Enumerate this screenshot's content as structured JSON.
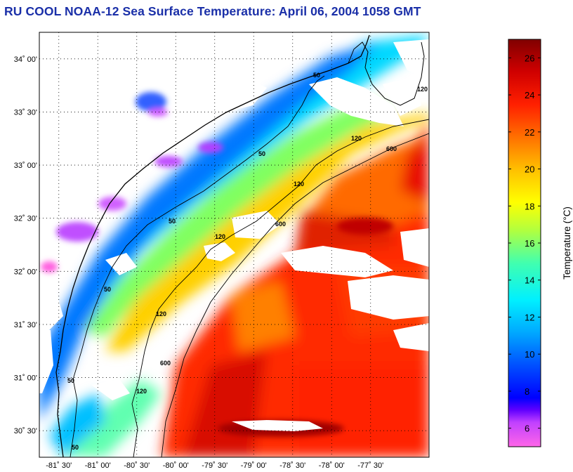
{
  "title": "RU COOL  NOAA-12  Sea Surface Temperature:  April 06, 2004 1058 GMT",
  "map": {
    "lon_range": [
      -81.75,
      -76.75
    ],
    "lat_range": [
      30.25,
      34.25
    ],
    "lat_ticks": [
      {
        "value": 34.0,
        "label": "34˚ 00'"
      },
      {
        "value": 33.5,
        "label": "33˚ 30'"
      },
      {
        "value": 33.0,
        "label": "33˚ 00'"
      },
      {
        "value": 32.5,
        "label": "32˚ 30'"
      },
      {
        "value": 32.0,
        "label": "32˚ 00'"
      },
      {
        "value": 31.5,
        "label": "31˚ 30'"
      },
      {
        "value": 31.0,
        "label": "31˚ 00'"
      },
      {
        "value": 30.5,
        "label": "30˚ 30'"
      }
    ],
    "lon_ticks": [
      {
        "value": -81.5,
        "label": "-81˚ 30'"
      },
      {
        "value": -81.0,
        "label": "-81˚ 00'"
      },
      {
        "value": -80.5,
        "label": "-80˚ 30'"
      },
      {
        "value": -80.0,
        "label": "-80˚ 00'"
      },
      {
        "value": -79.5,
        "label": "-79˚ 30'"
      },
      {
        "value": -79.0,
        "label": "-79˚ 00'"
      },
      {
        "value": -78.5,
        "label": "-78˚ 30'"
      },
      {
        "value": -78.0,
        "label": "-78˚ 00'"
      },
      {
        "value": -77.5,
        "label": "-77˚ 30'"
      }
    ],
    "isobath_labels": [
      "50",
      "120",
      "600"
    ]
  },
  "colorbar": {
    "label": "Temperature (°C)",
    "range": [
      5,
      27
    ],
    "ticks": [
      "6",
      "8",
      "10",
      "12",
      "14",
      "16",
      "18",
      "20",
      "22",
      "24",
      "26"
    ],
    "colors": [
      "#ff66e0",
      "#c040ff",
      "#0000ff",
      "#0060ff",
      "#00e0ff",
      "#60ffa0",
      "#ffff00",
      "#ffa000",
      "#ff3000",
      "#d00000",
      "#800000"
    ]
  }
}
